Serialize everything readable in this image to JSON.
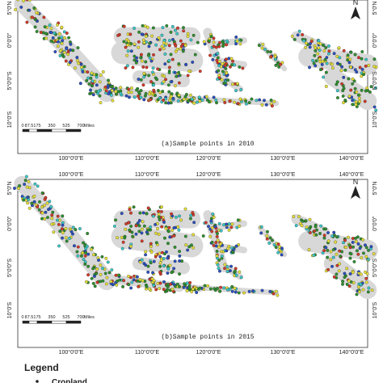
{
  "panels": [
    {
      "caption": "(a)Sample points in 2010"
    },
    {
      "caption": "(b)Sample points in 2015"
    }
  ],
  "lat_labels": [
    "5°0'N",
    "0°0'0\"",
    "5°0'0\"S",
    "10°0'S"
  ],
  "lon_labels": [
    "100°0'0\"E",
    "110°0'0\"E",
    "120°0'0\"E",
    "130°0'0\"E",
    "140°0'0\"E"
  ],
  "scale_labels": [
    "0",
    "87.5",
    "175",
    "350",
    "525",
    "700",
    "Miles"
  ],
  "north": "N",
  "legend": {
    "title": "Legend",
    "items": [
      "Cropland"
    ]
  }
}
